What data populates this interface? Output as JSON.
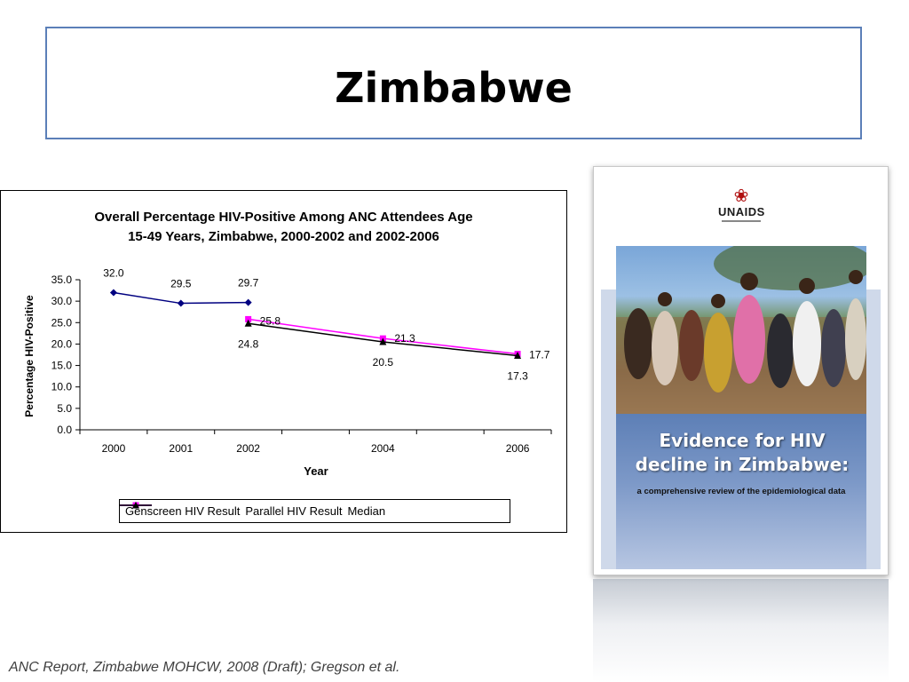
{
  "slide": {
    "title": "Zimbabwe",
    "source": "ANC Report, Zimbabwe MOHCW, 2008 (Draft); Gregson et al."
  },
  "chart_data": {
    "type": "line",
    "title_line1": "Overall Percentage HIV-Positive Among ANC Attendees Age",
    "title_line2": "15-49 Years, Zimbabwe, 2000-2002 and 2002-2006",
    "xlabel": "Year",
    "ylabel": "Percentage HIV-Positive",
    "ylim": [
      0,
      35
    ],
    "yticks": [
      "0.0",
      "5.0",
      "10.0",
      "15.0",
      "20.0",
      "25.0",
      "30.0",
      "35.0"
    ],
    "xlim": [
      1999.5,
      2006.5
    ],
    "xticks": [
      2000,
      2001,
      2002,
      2004,
      2006
    ],
    "grid": false,
    "legend_position": "bottom",
    "series": [
      {
        "name": "Genscreen HIV Result",
        "color": "#000080",
        "marker": "diamond",
        "x": [
          2000,
          2001,
          2002
        ],
        "values": [
          32.0,
          29.5,
          29.7
        ],
        "labels": [
          "32.0",
          "29.5",
          "29.7"
        ]
      },
      {
        "name": "Parallel HIV Result",
        "color": "#ff00ff",
        "marker": "square",
        "x": [
          2002,
          2004,
          2006
        ],
        "values": [
          25.8,
          21.3,
          17.7
        ],
        "labels": [
          "25.8",
          "21.3",
          "17.7"
        ]
      },
      {
        "name": "Median",
        "color": "#000000",
        "marker": "triangle",
        "x": [
          2002,
          2004,
          2006
        ],
        "values": [
          24.8,
          20.5,
          17.3
        ],
        "labels": [
          "24.8",
          "20.5",
          "17.3"
        ]
      }
    ]
  },
  "cover": {
    "logo_text": "UNAIDS",
    "heading": "Evidence for HIV decline in Zimbabwe:",
    "subheading": "a comprehensive review of the epidemiological data"
  }
}
